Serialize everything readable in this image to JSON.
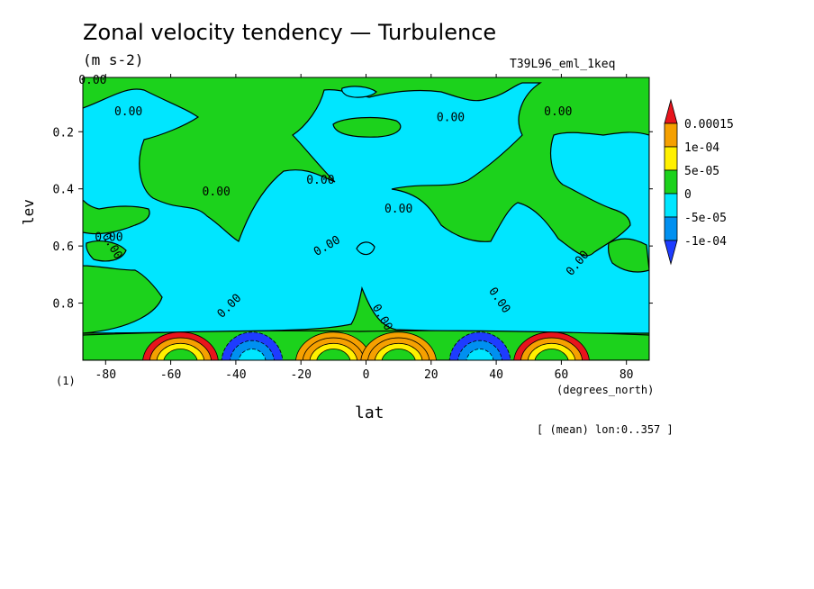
{
  "chart_data": {
    "type": "heatmap",
    "title": "Zonal velocity tendency — Turbulence",
    "units": "(m s-2)",
    "run_label": "T39L96_eml_1keq",
    "xlabel": "lat",
    "x_unit": "(degrees_north)",
    "ylabel": "lev",
    "y_unit": "(1)",
    "note": "[ (mean) lon:0..357 ]",
    "xlim": [
      -87,
      87
    ],
    "ylim": [
      1.0,
      0.01
    ],
    "x_ticks": [
      -80,
      -60,
      -40,
      -20,
      0,
      20,
      40,
      60,
      80
    ],
    "y_ticks": [
      0.2,
      0.4,
      0.6,
      0.8
    ],
    "contour_label": "0.00",
    "color_levels": [
      {
        "min": 0.00015,
        "max": null,
        "color": "#e8141c"
      },
      {
        "min": 0.0001,
        "max": 0.00015,
        "color": "#f5a000"
      },
      {
        "min": 5e-05,
        "max": 0.0001,
        "color": "#fff000"
      },
      {
        "min": 0,
        "max": 5e-05,
        "color": "#1cd21c"
      },
      {
        "min": -5e-05,
        "max": 0,
        "color": "#00e6ff"
      },
      {
        "min": -0.0001,
        "max": -5e-05,
        "color": "#0090f0"
      },
      {
        "min": null,
        "max": -0.0001,
        "color": "#1e3cff"
      }
    ],
    "colorbar_labels": [
      "0.00015",
      "1e-04",
      "5e-05",
      "0",
      "-5e-05",
      "-1e-04"
    ],
    "features": [
      {
        "lat": -57,
        "lev": 0.99,
        "value": 0.00016
      },
      {
        "lat": -35,
        "lev": 0.99,
        "value": -0.00012
      },
      {
        "lat": -10,
        "lev": 0.99,
        "value": 0.00012
      },
      {
        "lat": 10,
        "lev": 0.99,
        "value": 0.00012
      },
      {
        "lat": 35,
        "lev": 0.99,
        "value": -0.00012
      },
      {
        "lat": 57,
        "lev": 0.99,
        "value": 0.00016
      }
    ]
  }
}
